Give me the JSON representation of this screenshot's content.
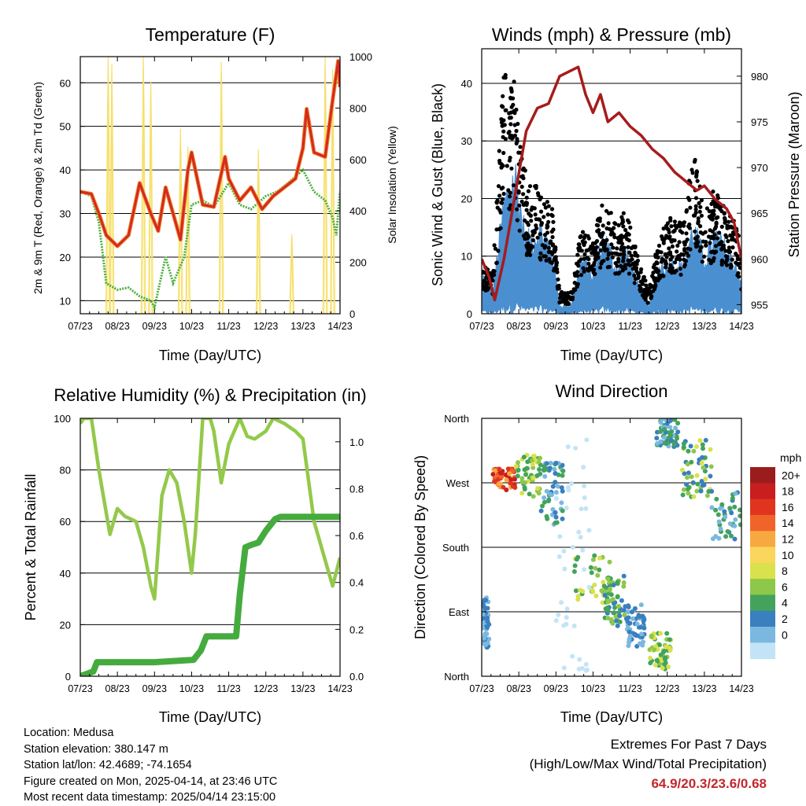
{
  "panels": {
    "temperature": {
      "title": "Temperature (F)",
      "xlabel": "Time (Day/UTC)",
      "ylabel_left": "2m & 9m T (Red, Orange) & 2m Td (Green)",
      "ylabel_right": "Solar Insolation (Yellow)"
    },
    "winds": {
      "title": "Winds (mph) & Pressure (mb)",
      "xlabel": "Time (Day/UTC)",
      "ylabel_left": "Sonic Wind & Gust (Blue, Black)",
      "ylabel_right": "Station Pressure (Maroon)"
    },
    "humidity": {
      "title": "Relative Humidity (%) & Precipitation (in)",
      "xlabel": "Time (Day/UTC)",
      "ylabel_left": "Percent & Total Rainfall"
    },
    "direction": {
      "title": "Wind Direction",
      "xlabel": "Time (Day/UTC)",
      "ylabel_left": "Direction (Colored By Speed)",
      "legend_title": "mph",
      "legend_labels": [
        "20+",
        "18",
        "16",
        "14",
        "12",
        "10",
        "8",
        "6",
        "4",
        "2",
        "0"
      ],
      "legend_colors": [
        "#9b1c1c",
        "#c81e1e",
        "#e0341f",
        "#f0642a",
        "#f8a840",
        "#fbd65c",
        "#d9e14d",
        "#8dc84a",
        "#43a35c",
        "#3a7fbe",
        "#7ab8e0",
        "#c2e4f6"
      ]
    }
  },
  "info": {
    "location": "Location: Medusa",
    "elevation": "Station elevation: 380.147 m",
    "latlon": "Station lat/lon: 42.4689; -74.1654",
    "created": "Figure created on Mon, 2025-04-14, at 23:46 UTC",
    "recent": "Most recent data timestamp: 2025/04/14 23:15:00"
  },
  "extremes": {
    "line1": "Extremes For Past 7 Days",
    "line2": "(High/Low/Max Wind/Total Precipitation)",
    "values": "64.9/20.3/23.6/0.68"
  },
  "chart_data": [
    {
      "type": "line",
      "title": "Temperature (F)",
      "xlabel": "Time (Day/UTC)",
      "ylabel": "2m & 9m T (Red, Orange) & 2m Td (Green)",
      "ylabel_right": "Solar Insolation (Yellow)",
      "x_ticks": [
        "07/23",
        "08/23",
        "09/23",
        "10/23",
        "11/23",
        "12/23",
        "13/23",
        "14/23"
      ],
      "xlim": [
        7,
        14
      ],
      "ylim": [
        7,
        66
      ],
      "y_ticks": [
        10,
        20,
        30,
        40,
        50,
        60
      ],
      "ylim_right": [
        0,
        1000
      ],
      "y_ticks_right": [
        0,
        200,
        400,
        600,
        800,
        1000
      ],
      "colors": {
        "t2m": "#d42a1f",
        "t9m": "#f08a2e",
        "td": "#4caf3c",
        "solar": "#f6e06a"
      },
      "series": [
        {
          "name": "2m T",
          "color": "#d42a1f",
          "x": [
            7,
            7.3,
            7.5,
            7.7,
            8.0,
            8.3,
            8.6,
            8.9,
            9.1,
            9.3,
            9.5,
            9.7,
            9.9,
            10.0,
            10.3,
            10.6,
            10.9,
            11.0,
            11.3,
            11.6,
            11.9,
            12.2,
            12.5,
            12.8,
            13.0,
            13.1,
            13.3,
            13.6,
            13.8,
            13.95,
            14.0
          ],
          "y": [
            35,
            34.5,
            30,
            25,
            22.5,
            25,
            37,
            30,
            26,
            36,
            30,
            24,
            40,
            44,
            32,
            31.5,
            43,
            38,
            33,
            36,
            31,
            34,
            36,
            38,
            45,
            54,
            44,
            43,
            56,
            65,
            59
          ]
        },
        {
          "name": "2m Td",
          "color": "#4caf3c",
          "x": [
            7,
            7.3,
            7.5,
            7.7,
            8.0,
            8.3,
            8.6,
            8.9,
            9.0,
            9.3,
            9.5,
            9.8,
            10.0,
            10.3,
            10.6,
            11.0,
            11.3,
            11.6,
            12.0,
            12.3,
            12.6,
            13.0,
            13.3,
            13.6,
            13.8,
            13.9,
            14.0
          ],
          "y": [
            35,
            34,
            28,
            14,
            12.5,
            13,
            11,
            10,
            8.5,
            20,
            14,
            20,
            32,
            33,
            31.5,
            37,
            32,
            31,
            34,
            35,
            37,
            40,
            35,
            33,
            29,
            25,
            35
          ]
        },
        {
          "name": "Solar Insolation",
          "color": "#f6e06a",
          "axis": "right",
          "peaks": [
            {
              "x": 7.75,
              "y": 1000
            },
            {
              "x": 7.85,
              "y": 970
            },
            {
              "x": 8.7,
              "y": 1000
            },
            {
              "x": 8.9,
              "y": 900
            },
            {
              "x": 9.7,
              "y": 720
            },
            {
              "x": 9.9,
              "y": 650
            },
            {
              "x": 10.8,
              "y": 980
            },
            {
              "x": 11.8,
              "y": 640
            },
            {
              "x": 12.7,
              "y": 310
            },
            {
              "x": 13.6,
              "y": 1000
            },
            {
              "x": 13.8,
              "y": 950
            }
          ]
        }
      ]
    },
    {
      "type": "scatter",
      "title": "Winds (mph) & Pressure (mb)",
      "xlabel": "Time (Day/UTC)",
      "ylabel": "Sonic Wind & Gust (Blue, Black)",
      "ylabel_right": "Station Pressure (Maroon)",
      "x_ticks": [
        "07/23",
        "08/23",
        "09/23",
        "10/23",
        "11/23",
        "12/23",
        "13/23",
        "14/23"
      ],
      "xlim": [
        7,
        14
      ],
      "ylim": [
        0,
        46
      ],
      "y_ticks": [
        0,
        10,
        20,
        30,
        40
      ],
      "ylim_right": [
        954,
        983
      ],
      "y_ticks_right": [
        955,
        960,
        965,
        970,
        975,
        980
      ],
      "colors": {
        "wind": "#4a8fd0",
        "gust": "#000000",
        "pressure": "#a61c1c"
      },
      "series": [
        {
          "name": "Sonic Wind",
          "color": "#4a8fd0",
          "x": [
            7.0,
            7.3,
            7.6,
            7.9,
            8.2,
            8.6,
            8.9,
            9.1,
            9.4,
            9.7,
            10.0,
            10.3,
            10.6,
            10.9,
            11.2,
            11.5,
            11.8,
            12.1,
            12.4,
            12.7,
            13.0,
            13.3,
            13.6,
            13.9,
            14.0
          ],
          "y": [
            5,
            3,
            14,
            18,
            9,
            11,
            8,
            1,
            1,
            7,
            5,
            10,
            6,
            8,
            4,
            1,
            6,
            7,
            6,
            11,
            7,
            10,
            8,
            6,
            3
          ]
        },
        {
          "name": "Gust",
          "color": "#000000",
          "x": [
            7.0,
            7.3,
            7.6,
            7.9,
            8.2,
            8.6,
            8.9,
            9.1,
            9.4,
            9.7,
            10.0,
            10.3,
            10.6,
            10.9,
            11.2,
            11.5,
            11.8,
            12.1,
            12.4,
            12.7,
            13.0,
            13.3,
            13.6,
            13.9,
            14.0
          ],
          "y": [
            8,
            5,
            35,
            31,
            18,
            17,
            14,
            3,
            3,
            12,
            10,
            16,
            12,
            14,
            8,
            3,
            11,
            13,
            12,
            22,
            14,
            17,
            14,
            12,
            6
          ]
        },
        {
          "name": "Station Pressure",
          "color": "#a61c1c",
          "axis": "right",
          "x": [
            7.0,
            7.2,
            7.35,
            7.6,
            7.9,
            8.2,
            8.5,
            8.8,
            9.1,
            9.35,
            9.6,
            9.8,
            10.0,
            10.2,
            10.4,
            10.7,
            11.0,
            11.3,
            11.6,
            11.9,
            12.2,
            12.5,
            12.8,
            13.0,
            13.3,
            13.6,
            13.8,
            14.0
          ],
          "y": [
            960,
            958,
            955.5,
            960,
            967,
            974,
            976.5,
            977,
            980,
            980.5,
            981,
            978,
            976,
            978,
            975,
            976,
            974.5,
            973.5,
            972,
            971,
            969.5,
            968.5,
            967.5,
            968,
            966.5,
            965.5,
            964,
            960
          ]
        }
      ]
    },
    {
      "type": "line",
      "title": "Relative Humidity (%) & Precipitation (in)",
      "xlabel": "Time (Day/UTC)",
      "ylabel": "Percent & Total Rainfall",
      "x_ticks": [
        "07/23",
        "08/23",
        "09/23",
        "10/23",
        "11/23",
        "12/23",
        "13/23",
        "14/23"
      ],
      "xlim": [
        7,
        14
      ],
      "ylim": [
        0,
        100
      ],
      "y_ticks": [
        0,
        20,
        40,
        60,
        80,
        100
      ],
      "ylim_right": [
        0,
        1.1
      ],
      "y_ticks_right": [
        0.0,
        0.2,
        0.4,
        0.6,
        0.8,
        1.0
      ],
      "colors": {
        "rh": "#93c94b",
        "rain": "#45ab3e"
      },
      "series": [
        {
          "name": "Relative Humidity",
          "color": "#93c94b",
          "x": [
            7.0,
            7.1,
            7.3,
            7.5,
            7.8,
            8.0,
            8.2,
            8.5,
            8.7,
            8.9,
            9.0,
            9.2,
            9.4,
            9.6,
            9.8,
            10.0,
            10.1,
            10.3,
            10.5,
            10.6,
            10.8,
            11.0,
            11.3,
            11.5,
            11.7,
            12.0,
            12.2,
            12.5,
            12.8,
            13.0,
            13.3,
            13.6,
            13.8,
            14.0
          ],
          "y": [
            98,
            100,
            100,
            80,
            55,
            65,
            62,
            60,
            50,
            35,
            30,
            70,
            80,
            75,
            60,
            40,
            55,
            100,
            100,
            95,
            75,
            90,
            100,
            93,
            92,
            95,
            100,
            98,
            95,
            92,
            60,
            45,
            35,
            46
          ]
        },
        {
          "name": "Total Rainfall",
          "color": "#45ab3e",
          "axis": "right",
          "x": [
            7.0,
            7.35,
            7.45,
            8.0,
            9.0,
            10.05,
            10.25,
            10.4,
            11.0,
            11.2,
            11.3,
            11.45,
            11.6,
            11.8,
            12.0,
            12.25,
            12.4,
            13.0,
            14.0
          ],
          "y": [
            0.0,
            0.02,
            0.06,
            0.06,
            0.06,
            0.07,
            0.11,
            0.17,
            0.17,
            0.17,
            0.35,
            0.55,
            0.56,
            0.57,
            0.62,
            0.67,
            0.68,
            0.68,
            0.68
          ]
        }
      ]
    },
    {
      "type": "scatter",
      "title": "Wind Direction",
      "xlabel": "Time (Day/UTC)",
      "ylabel": "Direction (Colored By Speed)",
      "x_ticks": [
        "07/23",
        "08/23",
        "09/23",
        "10/23",
        "11/23",
        "12/23",
        "13/23",
        "14/23"
      ],
      "y_ticks": [
        "North",
        "West",
        "South",
        "East",
        "North"
      ],
      "xlim": [
        7,
        14
      ],
      "ylim": [
        0,
        360
      ],
      "legend": "right",
      "clusters": [
        {
          "x": [
            7.3,
            7.9
          ],
          "dir": [
            260,
            290
          ],
          "speed": [
            14,
            22
          ]
        },
        {
          "x": [
            7.9,
            8.6
          ],
          "dir": [
            250,
            310
          ],
          "speed": [
            6,
            12
          ]
        },
        {
          "x": [
            8.6,
            9.2
          ],
          "dir": [
            210,
            300
          ],
          "speed": [
            2,
            8
          ]
        },
        {
          "x": [
            7.0,
            7.2
          ],
          "dir": [
            40,
            110
          ],
          "speed": [
            2,
            6
          ]
        },
        {
          "x": [
            9.5,
            10.5
          ],
          "dir": [
            100,
            170
          ],
          "speed": [
            6,
            12
          ]
        },
        {
          "x": [
            10.3,
            10.9
          ],
          "dir": [
            70,
            140
          ],
          "speed": [
            4,
            10
          ]
        },
        {
          "x": [
            10.9,
            11.4
          ],
          "dir": [
            40,
            100
          ],
          "speed": [
            2,
            6
          ]
        },
        {
          "x": [
            11.5,
            12.1
          ],
          "dir": [
            10,
            60
          ],
          "speed": [
            6,
            12
          ]
        },
        {
          "x": [
            11.7,
            12.3
          ],
          "dir": [
            320,
            360
          ],
          "speed": [
            2,
            8
          ]
        },
        {
          "x": [
            12.4,
            13.2
          ],
          "dir": [
            250,
            330
          ],
          "speed": [
            4,
            12
          ]
        },
        {
          "x": [
            13.2,
            14.0
          ],
          "dir": [
            190,
            260
          ],
          "speed": [
            2,
            8
          ]
        },
        {
          "x": [
            9.0,
            9.9
          ],
          "dir": [
            0,
            360
          ],
          "speed": [
            0,
            2
          ]
        }
      ]
    }
  ]
}
